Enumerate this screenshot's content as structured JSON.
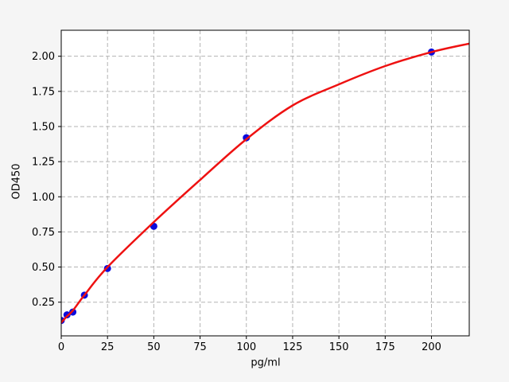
{
  "figure": {
    "background": "#f5f5f5",
    "plot_background": "#ffffff",
    "spine_color": "#000000",
    "text_color": "#000000"
  },
  "chart_data": {
    "type": "scatter",
    "xlabel": "pg/ml",
    "ylabel": "OD450",
    "xlim": [
      0,
      220.4
    ],
    "ylim": [
      0.0105,
      2.185
    ],
    "grid": true,
    "grid_style": {
      "color": "#b3b3b3",
      "dash": "5,3"
    },
    "x_ticks": [
      0,
      25,
      50,
      75,
      100,
      125,
      150,
      175,
      200
    ],
    "x_tick_labels": [
      "0",
      "25",
      "50",
      "75",
      "100",
      "125",
      "150",
      "175",
      "200"
    ],
    "y_ticks": [
      0.25,
      0.5,
      0.75,
      1.0,
      1.25,
      1.5,
      1.75,
      2.0
    ],
    "y_tick_labels": [
      "0.25",
      "0.50",
      "0.75",
      "1.00",
      "1.25",
      "1.50",
      "1.75",
      "2.00"
    ],
    "legend": "none",
    "series": [
      {
        "name": "standard-points",
        "type": "scatter",
        "color": "#0b0bdd",
        "marker": "circle",
        "marker_size": 9,
        "x": [
          0,
          3.125,
          6.25,
          12.5,
          25,
          50,
          100,
          200
        ],
        "y": [
          0.12,
          0.16,
          0.18,
          0.3,
          0.49,
          0.79,
          1.42,
          2.03
        ]
      },
      {
        "name": "fit-curve",
        "type": "line",
        "color": "#ee1111",
        "width": 2.5,
        "x": [
          0,
          3.125,
          6.25,
          12.5,
          25,
          50,
          75,
          100,
          125,
          150,
          175,
          200,
          220.4
        ],
        "y": [
          0.105,
          0.15,
          0.19,
          0.3,
          0.5,
          0.82,
          1.12,
          1.41,
          1.65,
          1.8,
          1.93,
          2.03,
          2.09
        ]
      }
    ]
  }
}
